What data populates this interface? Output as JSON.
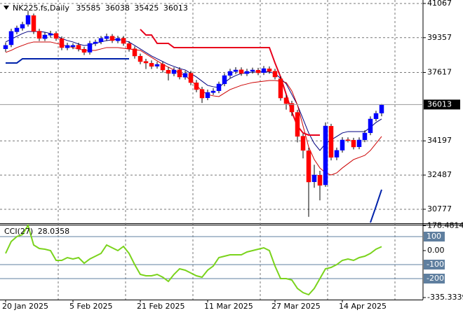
{
  "chart_data": [
    {
      "type": "candlestick",
      "title": "NK225.fs,Daily",
      "header_values": [
        35585,
        36038,
        35425,
        36013
      ],
      "categories": [
        "20 Jan 2025",
        null,
        null,
        null,
        null,
        null,
        null,
        null,
        null,
        null,
        null,
        null,
        "5 Feb 2025",
        null,
        null,
        null,
        null,
        null,
        null,
        null,
        null,
        null,
        null,
        null,
        "21 Feb 2025",
        null,
        null,
        null,
        null,
        null,
        null,
        null,
        null,
        null,
        null,
        null,
        "11 Mar 2025",
        null,
        null,
        null,
        null,
        null,
        null,
        null,
        null,
        null,
        null,
        null,
        "27 Mar 2025",
        null,
        null,
        null,
        null,
        null,
        null,
        null,
        null,
        null,
        null,
        null,
        "14 Apr 2025",
        null,
        null,
        null,
        null,
        null,
        null,
        null
      ],
      "open": [
        38800,
        39000,
        39650,
        39830,
        40030,
        40460,
        39680,
        39310,
        39480,
        39570,
        39310,
        38850,
        38900,
        38980,
        38780,
        38630,
        39060,
        39150,
        39310,
        39430,
        39200,
        39330,
        39060,
        38800,
        38430,
        38170,
        38080,
        37930,
        38030,
        37730,
        37560,
        37750,
        37380,
        37580,
        37100,
        36770,
        36350,
        36610,
        36700,
        37050,
        37470,
        37660,
        37750,
        37560,
        37680,
        37730,
        37610,
        37800,
        37680,
        37300,
        36350,
        36070,
        35620,
        34430,
        33700,
        32150,
        32480,
        32000,
        34930,
        33380,
        33730,
        34250,
        34230,
        33900,
        34250,
        34600,
        35300,
        35585
      ],
      "high": [
        39120,
        39800,
        39960,
        40150,
        40700,
        40560,
        39800,
        39620,
        39700,
        39680,
        39420,
        39100,
        39080,
        39100,
        38900,
        39200,
        39260,
        39440,
        39560,
        39540,
        39450,
        39440,
        39180,
        38920,
        38560,
        38300,
        38220,
        38150,
        38160,
        37880,
        37870,
        37880,
        37700,
        37700,
        37240,
        36900,
        36760,
        36830,
        37160,
        37580,
        37800,
        37880,
        37870,
        37800,
        37860,
        37850,
        37940,
        37920,
        37800,
        37420,
        36480,
        36200,
        35750,
        34560,
        33850,
        33000,
        32700,
        35120,
        35050,
        33860,
        34380,
        34370,
        34350,
        34370,
        34720,
        35420,
        35700,
        36038
      ],
      "low": [
        38650,
        38880,
        39530,
        39710,
        39910,
        39540,
        39190,
        39190,
        39360,
        39200,
        38730,
        38730,
        38780,
        38670,
        38490,
        38510,
        38940,
        39030,
        39190,
        39090,
        39080,
        38950,
        38660,
        38310,
        38030,
        37790,
        37790,
        37810,
        37610,
        37220,
        37430,
        37270,
        37260,
        36980,
        36630,
        36090,
        36230,
        36490,
        36580,
        36930,
        37350,
        37540,
        37450,
        37440,
        37560,
        37480,
        37490,
        37550,
        37270,
        36210,
        35760,
        35440,
        34120,
        33320,
        30400,
        31850,
        31220,
        31900,
        33220,
        33230,
        33610,
        34120,
        33770,
        33780,
        34130,
        34480,
        35180,
        35425
      ],
      "close": [
        38970,
        39670,
        39840,
        40020,
        40470,
        39670,
        39320,
        39490,
        39560,
        39320,
        38860,
        38970,
        38970,
        38790,
        38620,
        39070,
        39140,
        39320,
        39420,
        39210,
        39320,
        39070,
        38790,
        38440,
        38160,
        38090,
        37920,
        38020,
        37740,
        37570,
        37740,
        37390,
        37570,
        37110,
        36760,
        36340,
        36620,
        36690,
        37040,
        37460,
        37670,
        37740,
        37570,
        37670,
        37740,
        37600,
        37810,
        37670,
        37390,
        36340,
        36060,
        35640,
        34420,
        33720,
        32140,
        32490,
        31970,
        34940,
        33370,
        33720,
        34240,
        34240,
        33890,
        34240,
        34590,
        35290,
        35570,
        36013
      ],
      "up_color": "#0000ff",
      "down_color": "#ff0000",
      "series": [
        {
          "color": "#000080",
          "values": [
            39142,
            39282,
            39422,
            39562,
            39667,
            39667,
            39667,
            39632,
            39562,
            39457,
            39317,
            39212,
            39142,
            39037,
            38967,
            39002,
            39072,
            39142,
            39212,
            39247,
            39282,
            39212,
            39142,
            38967,
            38792,
            38617,
            38442,
            38302,
            38162,
            38022,
            37917,
            37812,
            37742,
            37567,
            37392,
            37182,
            36972,
            36902,
            36867,
            37112,
            37322,
            37462,
            37567,
            37602,
            37637,
            37637,
            37672,
            37637,
            37567,
            37322,
            37042,
            36517,
            35992,
            35292,
            34592,
            34067,
            33717,
            34067,
            34242,
            34417,
            34592,
            34662,
            34662,
            34662,
            34662,
            34872,
            35117,
            35292
          ]
        },
        {
          "color": "#cc0000",
          "values": [
            38617,
            38722,
            38862,
            38967,
            39072,
            39142,
            39142,
            39142,
            39142,
            39072,
            39002,
            38932,
            38862,
            38792,
            38722,
            38722,
            38722,
            38792,
            38862,
            38862,
            38862,
            38827,
            38792,
            38757,
            38722,
            38547,
            38372,
            38197,
            38022,
            37882,
            37742,
            37602,
            37462,
            37217,
            36972,
            36692,
            36517,
            36447,
            36412,
            36587,
            36762,
            36867,
            36972,
            37042,
            37112,
            37147,
            37182,
            37217,
            37217,
            37182,
            37112,
            36692,
            35992,
            34942,
            33892,
            33262,
            32842,
            32597,
            32492,
            32597,
            32842,
            33052,
            33262,
            33367,
            33472,
            33717,
            34067,
            34417
          ]
        },
        {
          "color": "#e8001c",
          "values": [
            null,
            null,
            null,
            null,
            null,
            null,
            null,
            null,
            null,
            null,
            null,
            null,
            null,
            null,
            null,
            null,
            null,
            null,
            null,
            null,
            null,
            null,
            null,
            null,
            39772,
            39492,
            39492,
            39072,
            39072,
            39072,
            38862,
            38862,
            38862,
            38862,
            38862,
            38862,
            38862,
            38862,
            38862,
            38862,
            38862,
            38862,
            38862,
            38862,
            38862,
            38862,
            38862,
            38862,
            38092,
            37392,
            36517,
            35642,
            34942,
            34592,
            34487,
            34487,
            34487,
            null,
            null,
            null,
            null,
            null,
            null,
            null,
            null,
            null,
            null,
            null
          ]
        },
        {
          "color": "#0022aa",
          "values": [
            38092,
            38092,
            38092,
            38302,
            38302,
            38302,
            38302,
            38302,
            38302,
            38302,
            38302,
            38302,
            38302,
            38302,
            38302,
            38302,
            38302,
            38302,
            38302,
            38302,
            38302,
            38302,
            38302,
            null,
            null,
            null,
            null,
            null,
            null,
            null,
            null,
            null,
            null,
            null,
            null,
            null,
            null,
            null,
            null,
            null,
            null,
            null,
            null,
            null,
            null,
            null,
            null,
            null,
            null,
            null,
            null,
            null,
            null,
            null,
            null,
            null,
            null,
            null,
            null,
            null,
            null,
            null,
            null,
            null,
            null,
            30112,
            30917,
            31757
          ]
        }
      ],
      "ylim": [
        30110,
        41240
      ],
      "yticks": [
        41067,
        39357,
        37617,
        34197,
        32487,
        30777
      ],
      "grid": true
    },
    {
      "type": "line",
      "title": "CCI(27)",
      "series": [
        {
          "color": "#7ad31c",
          "values": [
            -20,
            65,
            100,
            115,
            180,
            40,
            15,
            10,
            0,
            -70,
            -70,
            -50,
            -60,
            -50,
            -90,
            -60,
            -40,
            -20,
            40,
            20,
            0,
            30,
            -20,
            -100,
            -170,
            -180,
            -180,
            -170,
            -190,
            -220,
            -170,
            -130,
            -140,
            -160,
            -180,
            -190,
            -140,
            -110,
            -50,
            -40,
            -30,
            -30,
            -30,
            -10,
            0,
            10,
            20,
            0,
            -110,
            -200,
            -200,
            -210,
            -270,
            -300,
            -315,
            -270,
            -200,
            -130,
            -120,
            -100,
            -70,
            -60,
            -70,
            -50,
            -40,
            -20,
            10,
            28.0358
          ]
        }
      ],
      "ylim": [
        -350,
        185
      ],
      "yticks": [
        178.4814,
        {
          "value": 0,
          "label": "0.00"
        },
        -335.3339
      ],
      "levels": [
        100,
        -100,
        -200
      ],
      "level_color": "#5f7f9f"
    }
  ]
}
